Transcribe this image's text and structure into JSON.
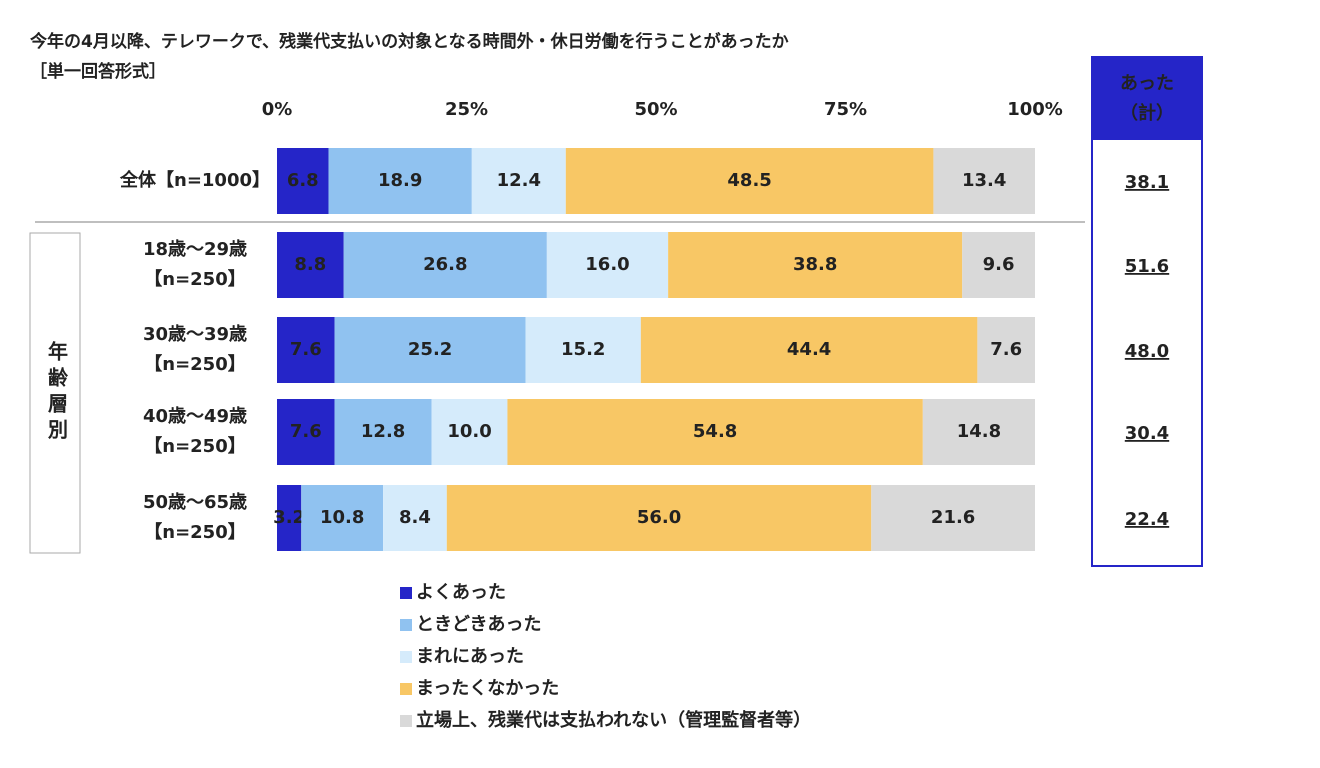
{
  "chart_data": {
    "type": "stacked_bar_horizontal",
    "title": "今年の4月以降、テレワークで、残業代支払いの対象となる時間外・休日労働を行うことがあったか",
    "subtitle": "［単一回答形式］",
    "categories": [
      [
        "全体【n=1000】"
      ],
      [
        "18歳～29歳",
        "【n=250】"
      ],
      [
        "30歳～39歳",
        "【n=250】"
      ],
      [
        "40歳～49歳",
        "【n=250】"
      ],
      [
        "50歳～65歳",
        "【n=250】"
      ]
    ],
    "group_label": "年齢層別",
    "xlim": [
      0,
      100
    ],
    "xticks": [
      {
        "value": 0,
        "label": "0%"
      },
      {
        "value": 25,
        "label": "25%"
      },
      {
        "value": 50,
        "label": "50%"
      },
      {
        "value": 75,
        "label": "75%"
      },
      {
        "value": 100,
        "label": "100%"
      }
    ],
    "legend": "bottom",
    "series": [
      {
        "name": "よくあった",
        "color": "#2525c8",
        "label_color": "#ffffff",
        "values": [
          6.8,
          8.8,
          7.6,
          7.6,
          3.2
        ],
        "value_labels": [
          "6.8",
          "8.8",
          "7.6",
          "7.6",
          "3.2"
        ]
      },
      {
        "name": "ときどきあった",
        "color": "#90c2f0",
        "label_color": "#222222",
        "values": [
          18.9,
          26.8,
          25.2,
          12.8,
          10.8
        ],
        "value_labels": [
          "18.9",
          "26.8",
          "25.2",
          "12.8",
          "10.8"
        ]
      },
      {
        "name": "まれにあった",
        "color": "#d5ebfb",
        "label_color": "#222222",
        "values": [
          12.4,
          16.0,
          15.2,
          10.0,
          8.4
        ],
        "value_labels": [
          "12.4",
          "16.0",
          "15.2",
          "10.0",
          "8.4"
        ]
      },
      {
        "name": "まったくなかった",
        "color": "#f8c765",
        "label_color": "#222222",
        "values": [
          48.5,
          38.8,
          44.4,
          54.8,
          56.0
        ],
        "value_labels": [
          "48.5",
          "38.8",
          "44.4",
          "54.8",
          "56.0"
        ]
      },
      {
        "name": "立場上、残業代は支払われない（管理監督者等）",
        "color": "#d9d9d9",
        "label_color": "#222222",
        "values": [
          13.4,
          9.6,
          7.6,
          14.8,
          21.6
        ],
        "value_labels": [
          "13.4",
          "9.6",
          "7.6",
          "14.8",
          "21.6"
        ]
      }
    ],
    "totals": {
      "title": [
        "あった",
        "（計）"
      ],
      "color": "#2525c8",
      "values": [
        38.1,
        51.6,
        48.0,
        30.4,
        22.4
      ],
      "value_labels": [
        "38.1",
        "51.6",
        "48.0",
        "30.4",
        "22.4"
      ]
    }
  }
}
